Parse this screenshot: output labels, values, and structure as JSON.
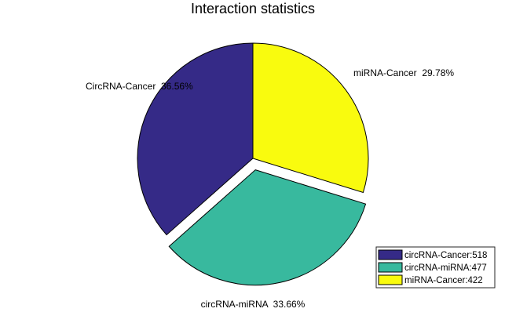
{
  "chart_data": {
    "type": "pie",
    "title": "Interaction statistics",
    "slices": [
      {
        "label": "miRNA-Cancer  29.78%",
        "legend": "miRNA-Cancer:422",
        "value": 422,
        "percent": 29.78,
        "color": "#F9FB0E",
        "exploded": false
      },
      {
        "label": "circRNA-miRNA  33.66%",
        "legend": "circRNA-miRNA:477",
        "value": 477,
        "percent": 33.66,
        "color": "#38B99E",
        "exploded": true
      },
      {
        "label": "CircRNA-Cancer  36.56%",
        "legend": "circRNA-Cancer:518",
        "value": 518,
        "percent": 36.56,
        "color": "#352A87",
        "exploded": false
      }
    ],
    "legend_order": [
      2,
      1,
      0
    ],
    "legend_position": "bottom-right",
    "start_angle": "top",
    "direction": "clockwise"
  }
}
